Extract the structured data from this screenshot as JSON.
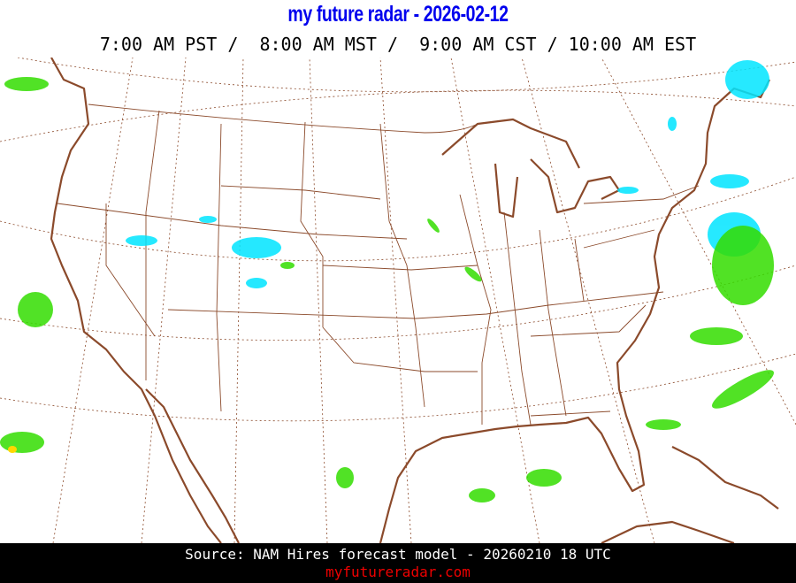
{
  "header": {
    "title": "my future radar - 2026-02-12",
    "times": "7:00 AM PST /  8:00 AM MST /  9:00 AM CST / 10:00 AM EST"
  },
  "map": {
    "region": "Continental United States",
    "colors": {
      "coastline": "#8b4a2b",
      "state_lines": "#8b4a2b",
      "graticule": "#8b4a2b",
      "snow": "#00e5ff",
      "light_rain": "#33dd00",
      "moderate_rain": "#ffd700"
    }
  },
  "footer": {
    "source": "Source: NAM Hires forecast model - 20260210 18 UTC",
    "site": "myfutureradar.com"
  }
}
